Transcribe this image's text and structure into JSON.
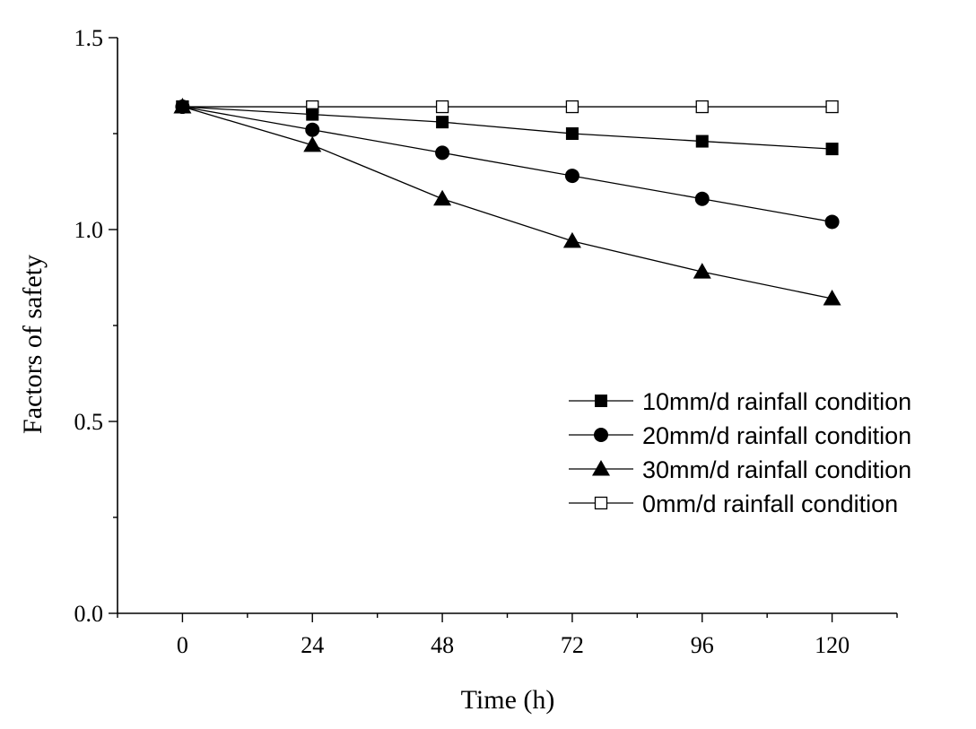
{
  "chart_data": {
    "type": "line",
    "title": "",
    "xlabel": "Time (h)",
    "ylabel": "Factors of safety",
    "x": [
      0,
      24,
      48,
      72,
      96,
      120
    ],
    "x_tick_labels": [
      "0",
      "24",
      "48",
      "72",
      "96",
      "120"
    ],
    "y_tick_labels": [
      "0.0",
      "0.5",
      "1.0",
      "1.5"
    ],
    "y_ticks": [
      0.0,
      0.5,
      1.0,
      1.5
    ],
    "xlim": [
      -12,
      132
    ],
    "ylim": [
      0.0,
      1.5
    ],
    "grid": false,
    "legend_position": "center-right",
    "series": [
      {
        "name": "10mm/d rainfall condition",
        "marker": "square-filled",
        "values": [
          1.32,
          1.3,
          1.28,
          1.25,
          1.23,
          1.21
        ]
      },
      {
        "name": "20mm/d rainfall condition",
        "marker": "circle-filled",
        "values": [
          1.32,
          1.26,
          1.2,
          1.14,
          1.08,
          1.02
        ]
      },
      {
        "name": "30mm/d rainfall condition",
        "marker": "triangle-filled",
        "values": [
          1.32,
          1.22,
          1.08,
          0.97,
          0.89,
          0.82
        ]
      },
      {
        "name": "0mm/d rainfall condition",
        "marker": "square-open",
        "values": [
          1.32,
          1.32,
          1.32,
          1.32,
          1.32,
          1.32
        ]
      }
    ]
  },
  "colors": {
    "line": "#000000",
    "marker": "#000000",
    "background": "#ffffff"
  }
}
